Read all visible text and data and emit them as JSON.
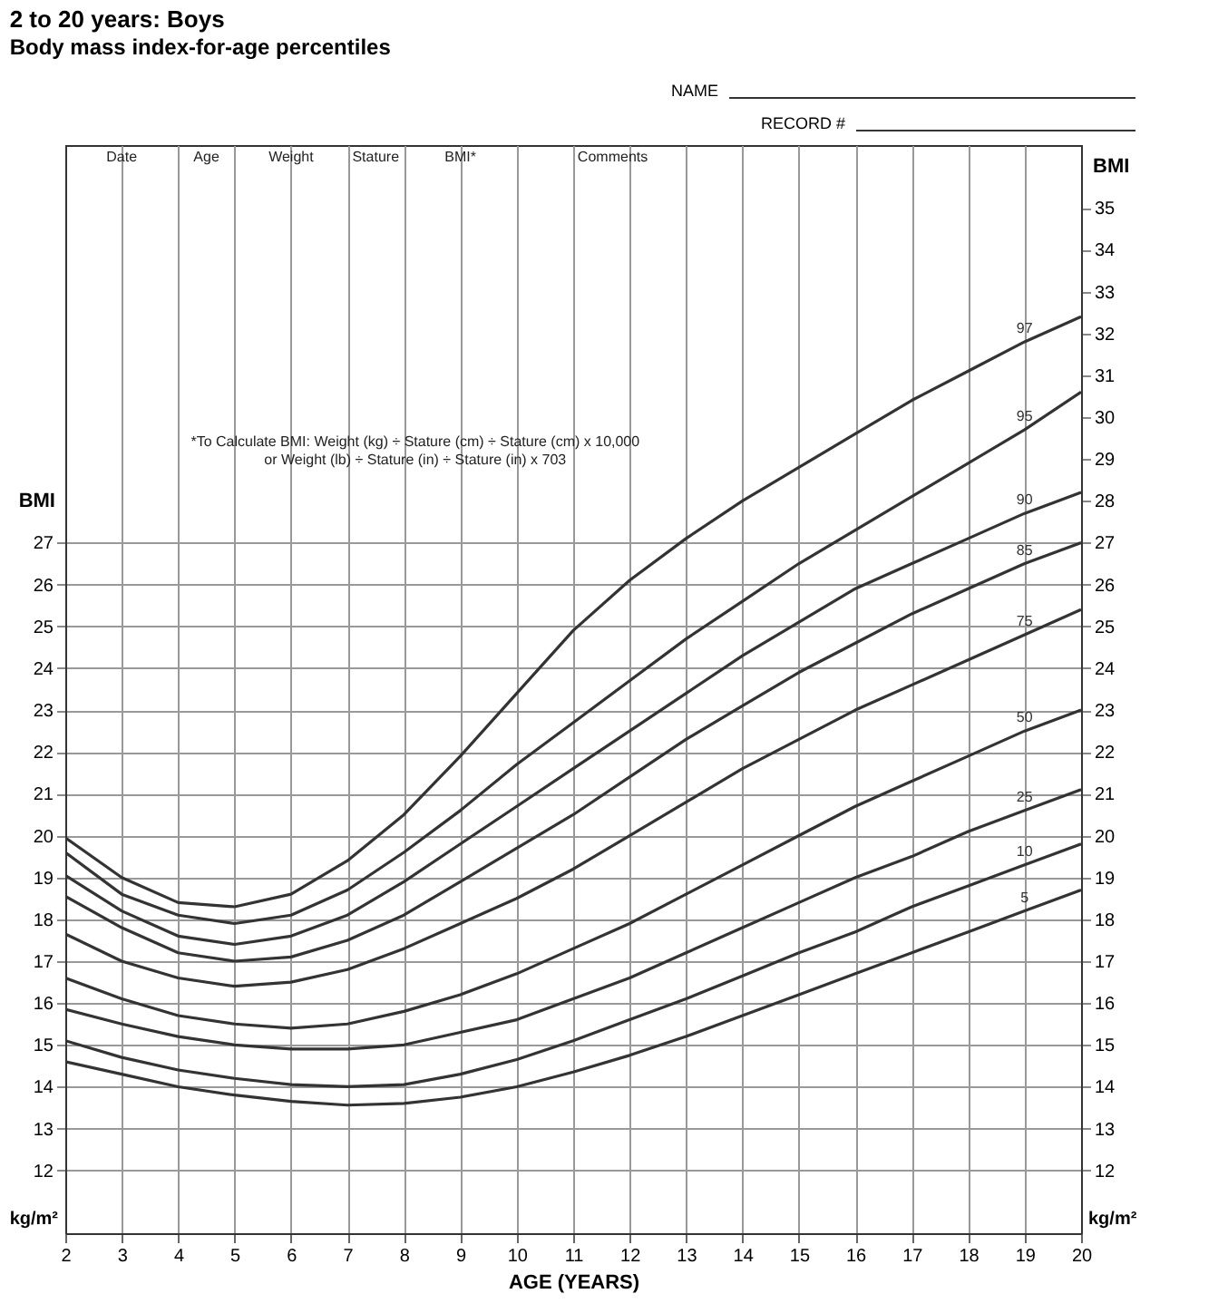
{
  "chart_data": {
    "type": "line",
    "title": "2 to 20 years: Boys",
    "subtitle": "Body mass index-for-age percentiles",
    "xlabel": "AGE (YEARS)",
    "ylabel": "BMI",
    "y2label": "BMI",
    "x": [
      2,
      3,
      4,
      5,
      6,
      7,
      8,
      9,
      10,
      11,
      12,
      13,
      14,
      15,
      16,
      17,
      18,
      19,
      20
    ],
    "series": [
      {
        "name": "97",
        "color": "#333333",
        "values": [
          19.95,
          19.0,
          18.4,
          18.3,
          18.6,
          19.4,
          20.5,
          21.9,
          23.4,
          24.9,
          26.1,
          27.1,
          28.0,
          28.8,
          29.6,
          30.4,
          31.1,
          31.8,
          32.4
        ]
      },
      {
        "name": "95",
        "color": "#333333",
        "values": [
          19.6,
          18.6,
          18.1,
          17.9,
          18.1,
          18.7,
          19.6,
          20.6,
          21.7,
          22.7,
          23.7,
          24.7,
          25.6,
          26.5,
          27.3,
          28.1,
          28.9,
          29.7,
          30.6
        ]
      },
      {
        "name": "90",
        "color": "#333333",
        "values": [
          19.05,
          18.2,
          17.6,
          17.4,
          17.6,
          18.1,
          18.9,
          19.8,
          20.7,
          21.6,
          22.5,
          23.4,
          24.3,
          25.1,
          25.9,
          26.5,
          27.1,
          27.7,
          28.2
        ]
      },
      {
        "name": "85",
        "color": "#333333",
        "values": [
          18.55,
          17.8,
          17.2,
          17.0,
          17.1,
          17.5,
          18.1,
          18.9,
          19.7,
          20.5,
          21.4,
          22.3,
          23.1,
          23.9,
          24.6,
          25.3,
          25.9,
          26.5,
          27.0
        ]
      },
      {
        "name": "75",
        "color": "#333333",
        "values": [
          17.65,
          17.0,
          16.6,
          16.4,
          16.5,
          16.8,
          17.3,
          17.9,
          18.5,
          19.2,
          20.0,
          20.8,
          21.6,
          22.3,
          23.0,
          23.6,
          24.2,
          24.8,
          25.4
        ]
      },
      {
        "name": "50",
        "color": "#333333",
        "values": [
          16.6,
          16.1,
          15.7,
          15.5,
          15.4,
          15.5,
          15.8,
          16.2,
          16.7,
          17.3,
          17.9,
          18.6,
          19.3,
          20.0,
          20.7,
          21.3,
          21.9,
          22.5,
          23.0
        ]
      },
      {
        "name": "25",
        "color": "#333333",
        "values": [
          15.85,
          15.5,
          15.2,
          15.0,
          14.9,
          14.9,
          15.0,
          15.3,
          15.6,
          16.1,
          16.6,
          17.2,
          17.8,
          18.4,
          19.0,
          19.5,
          20.1,
          20.6,
          21.1
        ]
      },
      {
        "name": "10",
        "color": "#333333",
        "values": [
          15.1,
          14.7,
          14.4,
          14.2,
          14.05,
          14.0,
          14.05,
          14.3,
          14.65,
          15.1,
          15.6,
          16.1,
          16.65,
          17.2,
          17.7,
          18.3,
          18.8,
          19.3,
          19.8
        ]
      },
      {
        "name": "5",
        "color": "#333333",
        "values": [
          14.6,
          14.3,
          14.0,
          13.8,
          13.65,
          13.56,
          13.6,
          13.75,
          14.0,
          14.35,
          14.75,
          15.2,
          15.7,
          16.2,
          16.7,
          17.2,
          17.7,
          18.2,
          18.7
        ]
      }
    ],
    "xlim": [
      2,
      20
    ],
    "xticks": [
      2,
      3,
      4,
      5,
      6,
      7,
      8,
      9,
      10,
      11,
      12,
      13,
      14,
      15,
      16,
      17,
      18,
      19,
      20
    ],
    "ylim": [
      10.5,
      36.5
    ],
    "yticks": [
      12,
      13,
      14,
      15,
      16,
      17,
      18,
      19,
      20,
      21,
      22,
      23,
      24,
      25,
      26,
      27
    ],
    "y2lim": [
      10.5,
      36.5
    ],
    "y2ticks": [
      12,
      13,
      14,
      15,
      16,
      17,
      18,
      19,
      20,
      21,
      22,
      23,
      24,
      25,
      26,
      27,
      28,
      29,
      30,
      31,
      32,
      33,
      34,
      35
    ],
    "grid": true,
    "legend": false,
    "marker": "none",
    "line_style": "solid",
    "annotations": [
      "NAME",
      "RECORD #",
      "Date",
      "Age",
      "Weight",
      "Stature",
      "BMI*",
      "Comments",
      "*To Calculate BMI: Weight (kg) ÷ Stature (cm) ÷ Stature (cm) x 10,000",
      "or Weight (lb) ÷ Stature (in) ÷ Stature (in) x 703",
      "kg/m²",
      "kg/m²"
    ]
  }
}
